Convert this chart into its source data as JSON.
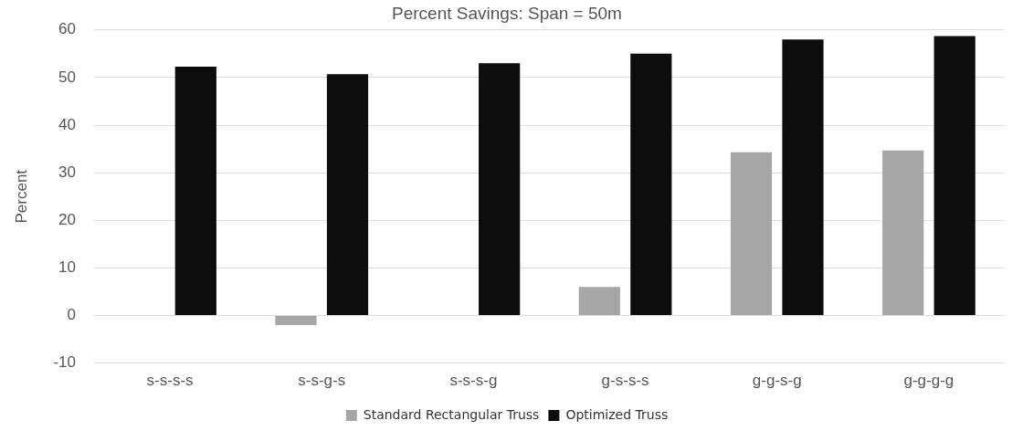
{
  "chart_data": {
    "type": "bar",
    "title": "Percent Savings: Span = 50m",
    "ylabel": "Percent",
    "categories": [
      "s-s-s-s",
      "s-s-g-s",
      "s-s-s-g",
      "g-s-s-s",
      "g-g-s-g",
      "g-g-g-g"
    ],
    "series": [
      {
        "name": "Standard Rectangular Truss",
        "color": "#a6a6a6",
        "values": [
          0,
          -2,
          0,
          6,
          34.3,
          34.7
        ]
      },
      {
        "name": "Optimized Truss",
        "color": "#0d0d0d",
        "values": [
          52.3,
          50.7,
          53,
          55,
          58,
          58.7
        ]
      }
    ],
    "ylim": [
      -10,
      60
    ],
    "yticks": [
      -10,
      0,
      10,
      20,
      30,
      40,
      50,
      60
    ],
    "grid": "y",
    "legend": "bottom"
  }
}
